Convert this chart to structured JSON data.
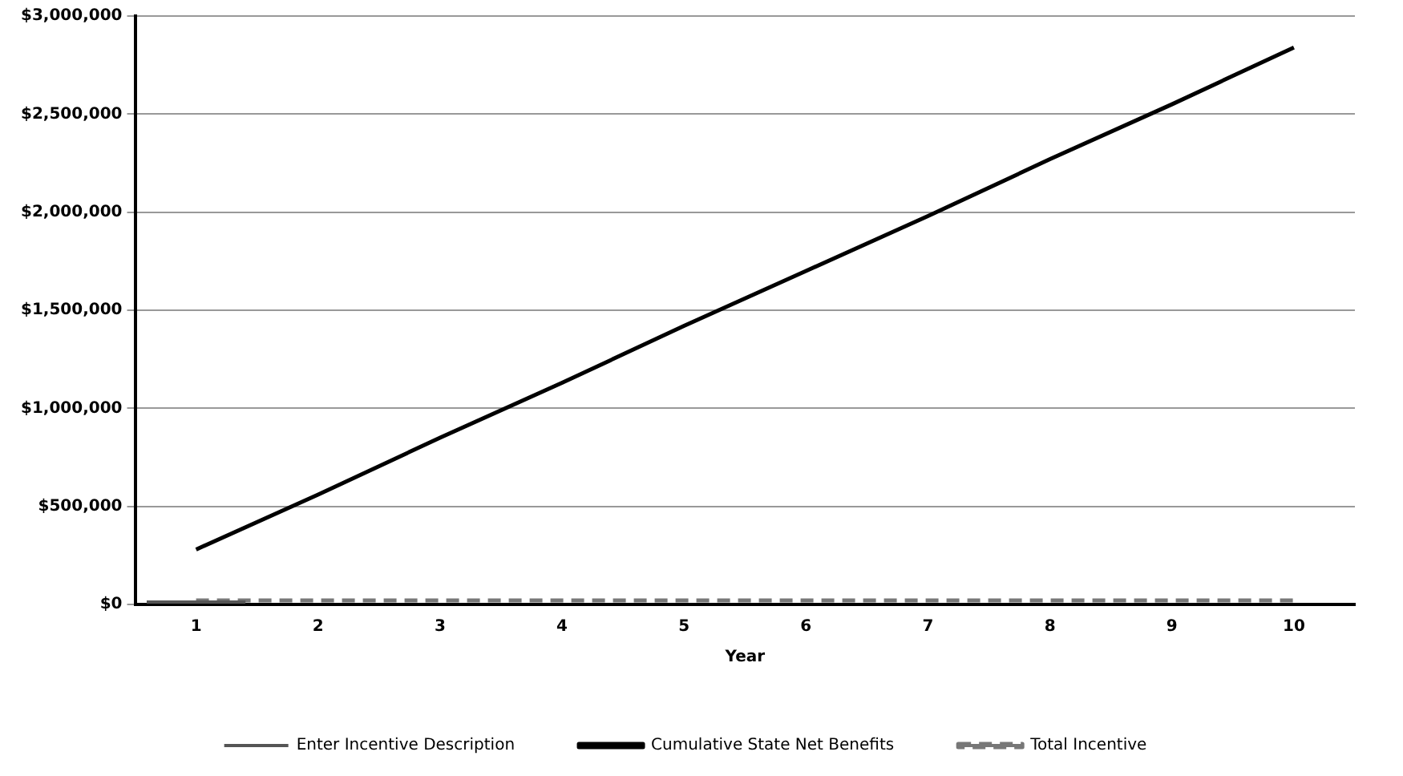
{
  "chart_data": {
    "type": "line",
    "xlabel": "Year",
    "categories": [
      "1",
      "2",
      "3",
      "4",
      "5",
      "6",
      "7",
      "8",
      "9",
      "10"
    ],
    "series": [
      {
        "name": "Enter Incentive Description",
        "type": "bar",
        "color": "#555555",
        "values": [
          20000,
          null,
          null,
          null,
          null,
          null,
          null,
          null,
          null,
          null
        ]
      },
      {
        "name": "Cumulative State Net Benefits",
        "color": "#000000",
        "values": [
          280000,
          560000,
          850000,
          1130000,
          1420000,
          1700000,
          1980000,
          2270000,
          2550000,
          2840000
        ]
      },
      {
        "name": "Total Incentive",
        "line_style": "dashed",
        "color": "#777777",
        "values": [
          20000,
          20000,
          20000,
          20000,
          20000,
          20000,
          20000,
          20000,
          20000,
          20000
        ]
      }
    ],
    "ylim": [
      0,
      3000000
    ],
    "yticks": [
      {
        "value": 0,
        "label": "$0"
      },
      {
        "value": 500000,
        "label": "$500,000"
      },
      {
        "value": 1000000,
        "label": "$1,000,000"
      },
      {
        "value": 1500000,
        "label": "$1,500,000"
      },
      {
        "value": 2000000,
        "label": "$2,000,000"
      },
      {
        "value": 2500000,
        "label": "$2,500,000"
      },
      {
        "value": 3000000,
        "label": "$3,000,000"
      }
    ],
    "grid": "y",
    "legend": "bottom",
    "marker": "none"
  }
}
